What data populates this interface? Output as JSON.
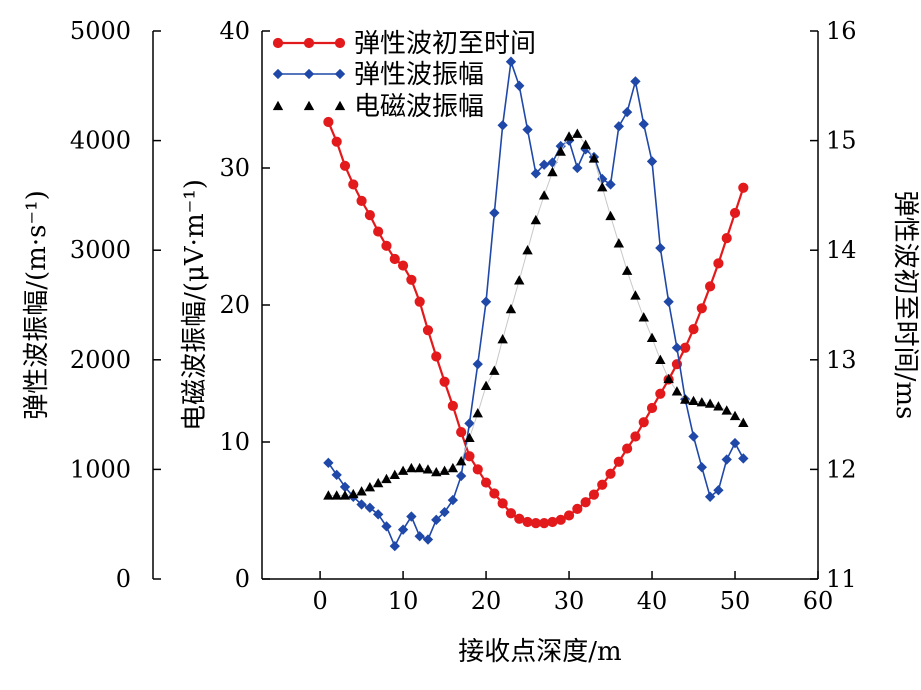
{
  "chart_data": {
    "type": "line",
    "xlabel": "接收点深度/m",
    "xlim": [
      -7,
      60
    ],
    "xticks": [
      0,
      10,
      20,
      30,
      40,
      50,
      60
    ],
    "left_outer_axis": {
      "label": "弹性波振幅/(m·s⁻¹)",
      "ylim": [
        0,
        5000
      ],
      "ticks": [
        0,
        1000,
        2000,
        3000,
        4000,
        5000
      ]
    },
    "left_inner_axis": {
      "label": "电磁波振幅/(μV·m⁻¹)",
      "ylim": [
        0,
        40
      ],
      "ticks": [
        0,
        10,
        20,
        30,
        40
      ]
    },
    "right_axis": {
      "label": "弹性波初至时间/ms",
      "ylim": [
        11,
        16
      ],
      "ticks": [
        11,
        12,
        13,
        14,
        15,
        16
      ]
    },
    "legend_position": "top-left",
    "series": [
      {
        "name": "弹性波初至时间",
        "axis": "right",
        "color": "#e31a1c",
        "marker": "circle",
        "x": [
          1,
          2,
          3,
          4,
          5,
          6,
          7,
          8,
          9,
          10,
          11,
          12,
          13,
          14,
          15,
          16,
          17,
          18,
          19,
          20,
          21,
          22,
          23,
          24,
          25,
          26,
          27,
          28,
          29,
          30,
          31,
          32,
          33,
          34,
          35,
          36,
          37,
          38,
          39,
          40,
          41,
          42,
          43,
          44,
          45,
          46,
          47,
          48,
          49,
          50,
          51
        ],
        "values": [
          15.17,
          14.99,
          14.77,
          14.6,
          14.45,
          14.32,
          14.17,
          14.04,
          13.92,
          13.86,
          13.73,
          13.53,
          13.27,
          13.03,
          12.8,
          12.58,
          12.34,
          12.12,
          12.0,
          11.88,
          11.78,
          11.69,
          11.6,
          11.55,
          11.52,
          11.51,
          11.51,
          11.52,
          11.54,
          11.58,
          11.64,
          11.7,
          11.77,
          11.86,
          11.96,
          12.07,
          12.19,
          12.3,
          12.43,
          12.56,
          12.69,
          12.82,
          12.96,
          13.11,
          13.28,
          13.47,
          13.67,
          13.88,
          14.11,
          14.34,
          14.57
        ]
      },
      {
        "name": "弹性波振幅",
        "axis": "left_outer",
        "color": "#1f48a8",
        "marker": "diamond",
        "x": [
          1,
          2,
          3,
          4,
          5,
          6,
          7,
          8,
          9,
          10,
          11,
          12,
          13,
          14,
          15,
          16,
          17,
          18,
          19,
          20,
          21,
          22,
          23,
          24,
          25,
          26,
          27,
          28,
          29,
          30,
          31,
          32,
          33,
          34,
          35,
          36,
          37,
          38,
          39,
          40,
          41,
          42,
          43,
          44,
          45,
          46,
          47,
          48,
          49,
          50,
          51
        ],
        "values": [
          1060,
          950,
          840,
          750,
          680,
          650,
          590,
          480,
          300,
          450,
          570,
          390,
          360,
          540,
          610,
          720,
          940,
          1420,
          1960,
          2530,
          3340,
          4140,
          4720,
          4500,
          4100,
          3700,
          3780,
          3800,
          3950,
          4000,
          3750,
          3920,
          3850,
          3650,
          3600,
          4130,
          4260,
          4540,
          4150,
          3810,
          3020,
          2530,
          2110,
          1640,
          1300,
          1020,
          750,
          810,
          1090,
          1240,
          1100
        ]
      },
      {
        "name": "电磁波振幅",
        "axis": "left_inner",
        "color": "#000000",
        "marker": "triangle",
        "x": [
          1,
          2,
          3,
          4,
          5,
          6,
          7,
          8,
          9,
          10,
          11,
          12,
          13,
          14,
          15,
          16,
          17,
          18,
          19,
          20,
          21,
          22,
          23,
          24,
          25,
          26,
          27,
          28,
          29,
          30,
          31,
          32,
          33,
          34,
          35,
          36,
          37,
          38,
          39,
          40,
          41,
          42,
          43,
          44,
          45,
          46,
          47,
          48,
          49,
          50,
          51
        ],
        "values": [
          6.1,
          6.1,
          6.1,
          6.2,
          6.4,
          6.7,
          7.0,
          7.3,
          7.6,
          7.9,
          8.1,
          8.1,
          8.0,
          7.8,
          7.9,
          8.1,
          8.6,
          10.3,
          12.1,
          14.1,
          15.2,
          17.5,
          19.7,
          21.8,
          24.0,
          26.2,
          28.0,
          29.7,
          31.2,
          32.3,
          32.5,
          31.7,
          30.7,
          28.6,
          26.5,
          24.5,
          22.5,
          20.7,
          19.1,
          17.6,
          16.0,
          14.6,
          13.7,
          13.1,
          13.0,
          12.9,
          12.8,
          12.6,
          12.3,
          11.9,
          11.4
        ]
      }
    ]
  }
}
